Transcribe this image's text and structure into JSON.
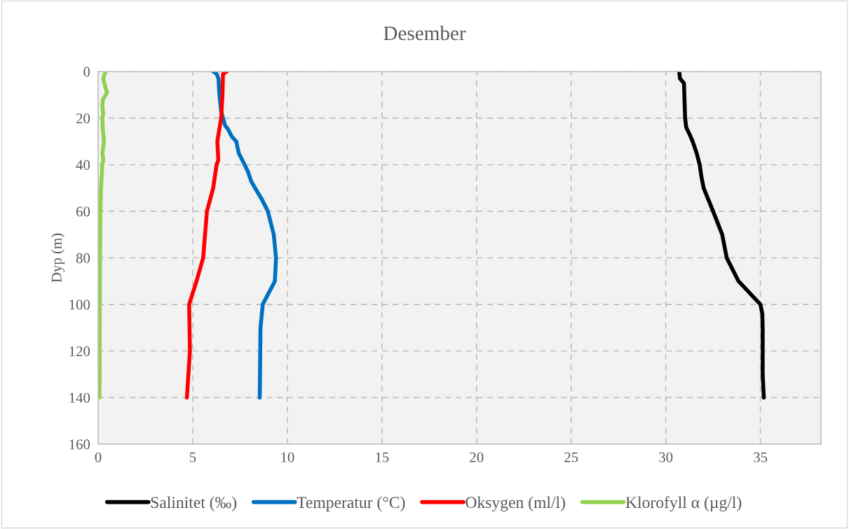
{
  "chart_data": {
    "type": "line",
    "title": "Desember",
    "ylabel": "Dyp (m)",
    "xlim": [
      0,
      38.2
    ],
    "xticks": [
      0,
      5,
      10,
      15,
      20,
      25,
      30,
      35
    ],
    "ylim": [
      160,
      0
    ],
    "yticks": [
      0,
      20,
      40,
      60,
      80,
      100,
      120,
      140,
      160
    ],
    "grid": true,
    "legend": "bottom",
    "marker": "none",
    "line_style": "solid",
    "series": [
      {
        "name": "Salinitet (‰)",
        "color": "#000000",
        "x": [
          30.71,
          30.75,
          30.96,
          30.98,
          31.02,
          31.08,
          31.26,
          31.42,
          31.63,
          31.79,
          31.88,
          32.0,
          32.5,
          32.98,
          33.22,
          33.84,
          35.0,
          35.1,
          35.12,
          35.12,
          35.18
        ],
        "values": [
          0,
          3,
          5,
          10,
          20,
          24,
          27,
          30,
          35,
          40,
          45,
          50,
          60,
          70,
          80,
          90,
          100,
          104,
          110,
          130,
          140
        ]
      },
      {
        "name": "Temperatur (°C)",
        "color": "#0070c0",
        "x": [
          6.08,
          6.26,
          6.36,
          6.41,
          6.5,
          6.7,
          6.88,
          7.07,
          7.3,
          7.35,
          7.43,
          7.74,
          7.92,
          8.08,
          8.29,
          8.66,
          8.97,
          9.28,
          9.4,
          9.34,
          8.7,
          8.58,
          8.54
        ],
        "values": [
          0,
          1,
          3,
          10,
          17,
          23,
          25,
          28,
          30,
          32,
          35,
          40,
          43,
          47,
          50,
          55,
          60,
          70,
          80,
          90,
          100,
          110,
          140
        ]
      },
      {
        "name": "Oksygen (ml/l)",
        "color": "#ff0000",
        "x": [
          6.8,
          6.6,
          6.57,
          6.5,
          6.3,
          6.35,
          6.26,
          6.08,
          5.75,
          5.55,
          5.2,
          4.81,
          4.85,
          4.69
        ],
        "values": [
          0,
          1,
          10,
          20,
          30,
          38,
          40,
          50,
          60,
          80,
          90,
          100,
          120,
          140
        ]
      },
      {
        "name": "Klorofyll α (µg/l)",
        "color": "#92d050",
        "x": [
          0.39,
          0.27,
          0.39,
          0.47,
          0.25,
          0.22,
          0.27,
          0.22,
          0.25,
          0.31,
          0.22,
          0.27,
          0.22,
          0.15,
          0.12,
          0.1,
          0.09,
          0.08,
          0.07
        ],
        "values": [
          0,
          3,
          7,
          9,
          12,
          15,
          18,
          20,
          25,
          30,
          35,
          38,
          40,
          50,
          60,
          80,
          100,
          120,
          140
        ]
      }
    ]
  }
}
